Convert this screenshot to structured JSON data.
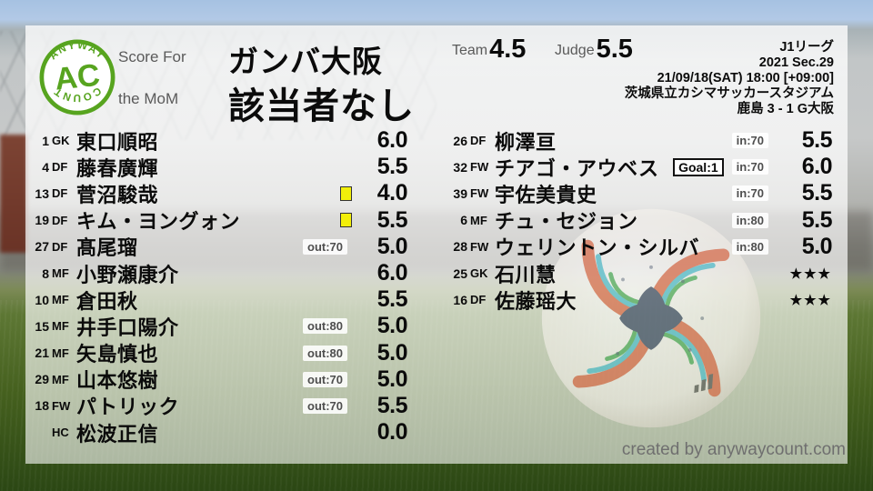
{
  "brand": {
    "arc_top": "ANYWAY",
    "center": "AC",
    "arc_bottom": "COUNT"
  },
  "header": {
    "score_for_label": "Score For",
    "team_name": "ガンバ大阪",
    "mom_label": "the MoM",
    "mom_value": "該当者なし",
    "team_label": "Team",
    "team_score": "4.5",
    "judge_label": "Judge",
    "judge_score": "5.5"
  },
  "match_info": {
    "league": "J1リーグ",
    "season": "2021 Sec.29",
    "datetime": "21/09/18(SAT) 18:00 [+09:00]",
    "venue": "茨城県立カシマサッカースタジアム",
    "result": "鹿島 3 - 1 G大阪"
  },
  "left_players": [
    {
      "num": "1",
      "pos": "GK",
      "name": "東口順昭",
      "badge": "",
      "card": false,
      "rating": "6.0"
    },
    {
      "num": "4",
      "pos": "DF",
      "name": "藤春廣輝",
      "badge": "",
      "card": false,
      "rating": "5.5"
    },
    {
      "num": "13",
      "pos": "DF",
      "name": "菅沼駿哉",
      "badge": "",
      "card": true,
      "rating": "4.0"
    },
    {
      "num": "19",
      "pos": "DF",
      "name": "キム・ヨングォン",
      "badge": "",
      "card": true,
      "rating": "5.5"
    },
    {
      "num": "27",
      "pos": "DF",
      "name": "髙尾瑠",
      "badge": "out:70",
      "card": false,
      "rating": "5.0"
    },
    {
      "num": "8",
      "pos": "MF",
      "name": "小野瀬康介",
      "badge": "",
      "card": false,
      "rating": "6.0"
    },
    {
      "num": "10",
      "pos": "MF",
      "name": "倉田秋",
      "badge": "",
      "card": false,
      "rating": "5.5"
    },
    {
      "num": "15",
      "pos": "MF",
      "name": "井手口陽介",
      "badge": "out:80",
      "card": false,
      "rating": "5.0"
    },
    {
      "num": "21",
      "pos": "MF",
      "name": "矢島慎也",
      "badge": "out:80",
      "card": false,
      "rating": "5.0"
    },
    {
      "num": "29",
      "pos": "MF",
      "name": "山本悠樹",
      "badge": "out:70",
      "card": false,
      "rating": "5.0"
    },
    {
      "num": "18",
      "pos": "FW",
      "name": "パトリック",
      "badge": "out:70",
      "card": false,
      "rating": "5.5"
    },
    {
      "num": "",
      "pos": "HC",
      "name": "松波正信",
      "badge": "",
      "card": false,
      "rating": "0.0"
    }
  ],
  "right_players": [
    {
      "num": "26",
      "pos": "DF",
      "name": "柳澤亘",
      "goal": "",
      "badge": "in:70",
      "rating": "5.5",
      "stars": false
    },
    {
      "num": "32",
      "pos": "FW",
      "name": "チアゴ・アウベス",
      "goal": "Goal:1",
      "badge": "in:70",
      "rating": "6.0",
      "stars": false
    },
    {
      "num": "39",
      "pos": "FW",
      "name": "宇佐美貴史",
      "goal": "",
      "badge": "in:70",
      "rating": "5.5",
      "stars": false
    },
    {
      "num": "6",
      "pos": "MF",
      "name": "チュ・セジョン",
      "goal": "",
      "badge": "in:80",
      "rating": "5.5",
      "stars": false
    },
    {
      "num": "28",
      "pos": "FW",
      "name": "ウェリントン・シルバ",
      "goal": "",
      "badge": "in:80",
      "rating": "5.0",
      "stars": false
    },
    {
      "num": "25",
      "pos": "GK",
      "name": "石川慧",
      "goal": "",
      "badge": "",
      "rating": "★★★",
      "stars": true
    },
    {
      "num": "16",
      "pos": "DF",
      "name": "佐藤瑶大",
      "goal": "",
      "badge": "",
      "rating": "★★★",
      "stars": true
    }
  ],
  "footer": {
    "credit": "created by anywaycount.com"
  },
  "colors": {
    "brand_green": "#57a41f",
    "card_yellow": "#f2ef0a",
    "badge_text": "#4e4e4e"
  }
}
